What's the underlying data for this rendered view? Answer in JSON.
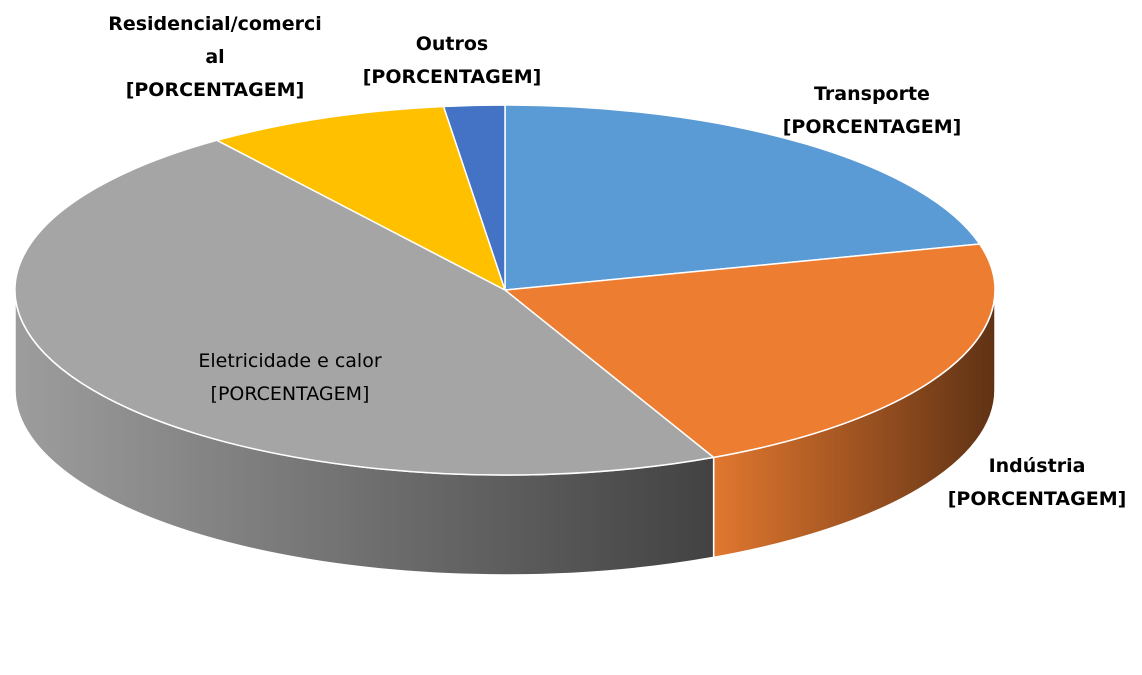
{
  "chart_data": {
    "type": "pie",
    "categories": [
      "Transporte",
      "Indústria",
      "Eletricidade e calor",
      "Residencial/comercial",
      "Outros"
    ],
    "values": [
      21,
      22,
      47,
      8,
      2
    ],
    "value_labels": [
      "[PORCENTAGEM]",
      "[PORCENTAGEM]",
      "[PORCENTAGEM]",
      "[PORCENTAGEM]",
      "[PORCENTAGEM]"
    ],
    "colors": [
      "#5b9bd5",
      "#ed7d31",
      "#a5a5a5",
      "#ffc000",
      "#4472c4"
    ]
  }
}
